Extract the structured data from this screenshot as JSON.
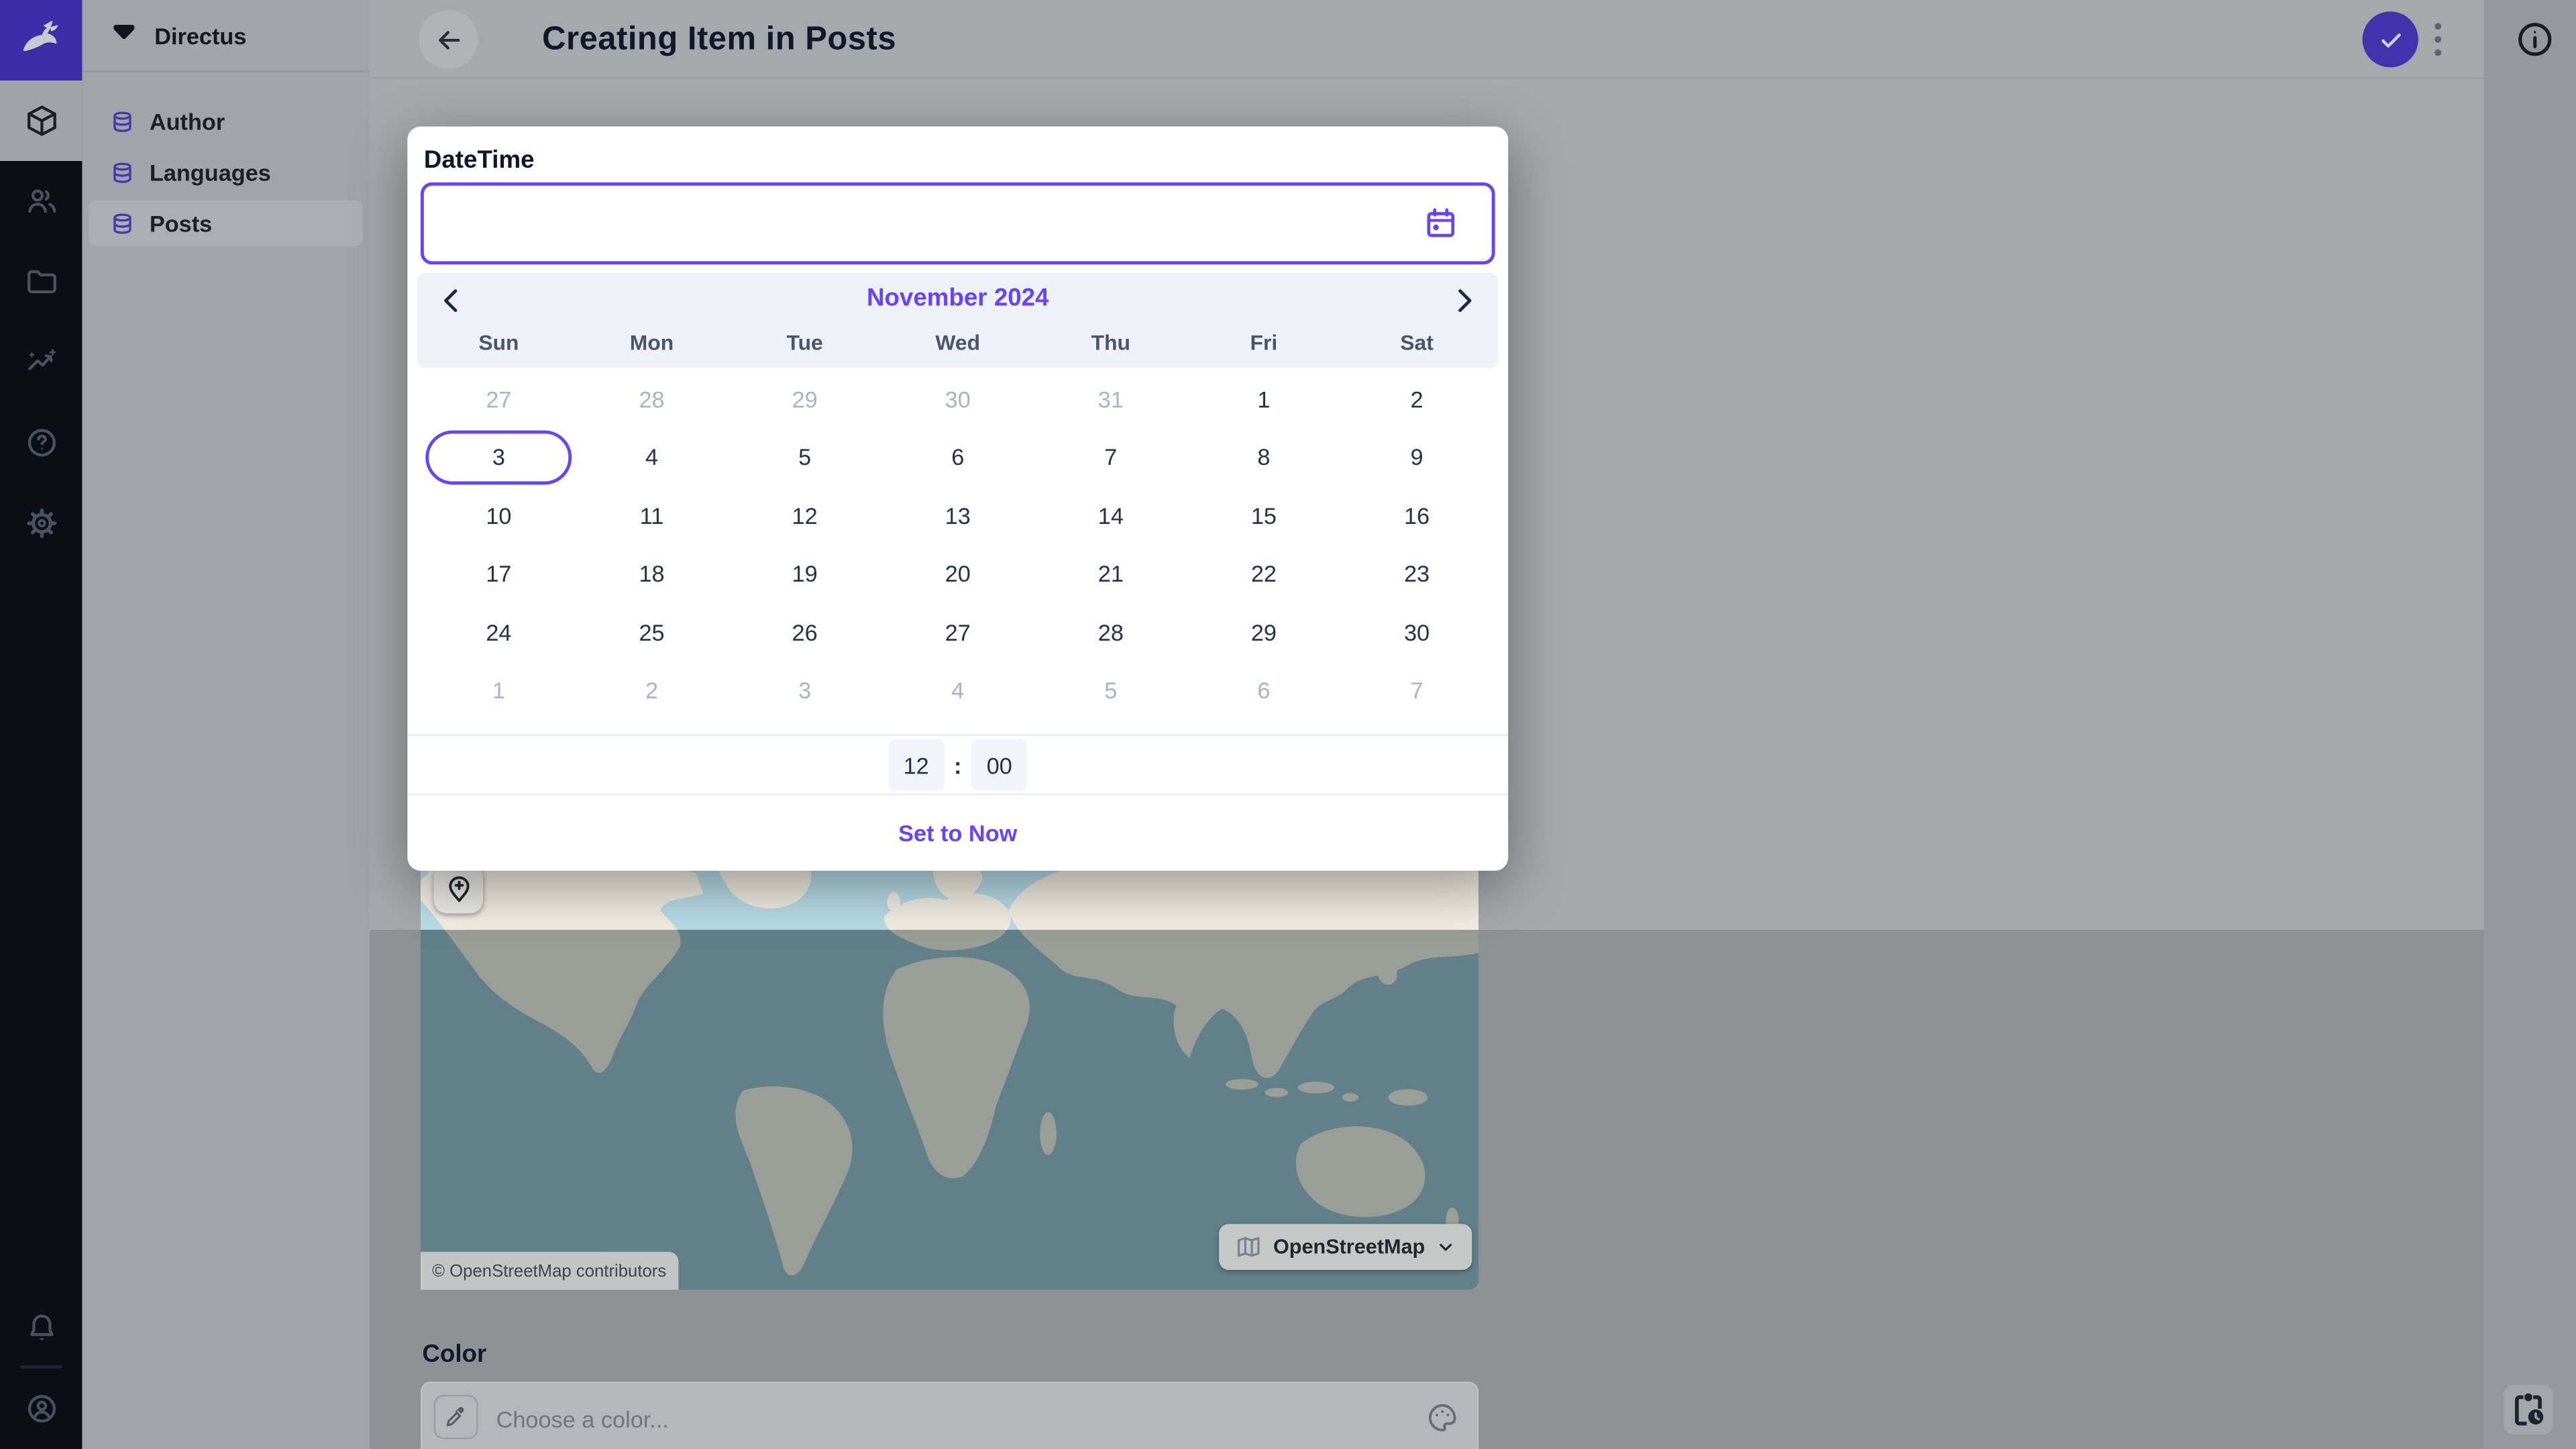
{
  "app": {
    "page_title": "Creating Item in Posts"
  },
  "project": {
    "name": "Directus"
  },
  "nav": {
    "items": [
      {
        "label": "Author",
        "active": false
      },
      {
        "label": "Languages",
        "active": false
      },
      {
        "label": "Posts",
        "active": true
      }
    ]
  },
  "datetime_popup": {
    "label": "DateTime",
    "input_value": "",
    "calendar": {
      "month_label": "November 2024",
      "weekdays": [
        "Sun",
        "Mon",
        "Tue",
        "Wed",
        "Thu",
        "Fri",
        "Sat"
      ],
      "weeks": [
        [
          {
            "n": "27",
            "muted": true
          },
          {
            "n": "28",
            "muted": true
          },
          {
            "n": "29",
            "muted": true
          },
          {
            "n": "30",
            "muted": true
          },
          {
            "n": "31",
            "muted": true
          },
          {
            "n": "1"
          },
          {
            "n": "2"
          }
        ],
        [
          {
            "n": "3",
            "selected": true
          },
          {
            "n": "4"
          },
          {
            "n": "5"
          },
          {
            "n": "6"
          },
          {
            "n": "7"
          },
          {
            "n": "8"
          },
          {
            "n": "9"
          }
        ],
        [
          {
            "n": "10"
          },
          {
            "n": "11"
          },
          {
            "n": "12"
          },
          {
            "n": "13"
          },
          {
            "n": "14"
          },
          {
            "n": "15"
          },
          {
            "n": "16"
          }
        ],
        [
          {
            "n": "17"
          },
          {
            "n": "18"
          },
          {
            "n": "19"
          },
          {
            "n": "20"
          },
          {
            "n": "21"
          },
          {
            "n": "22"
          },
          {
            "n": "23"
          }
        ],
        [
          {
            "n": "24"
          },
          {
            "n": "25"
          },
          {
            "n": "26"
          },
          {
            "n": "27"
          },
          {
            "n": "28"
          },
          {
            "n": "29"
          },
          {
            "n": "30"
          }
        ],
        [
          {
            "n": "1",
            "muted": true
          },
          {
            "n": "2",
            "muted": true
          },
          {
            "n": "3",
            "muted": true
          },
          {
            "n": "4",
            "muted": true
          },
          {
            "n": "5",
            "muted": true
          },
          {
            "n": "6",
            "muted": true
          },
          {
            "n": "7",
            "muted": true
          }
        ]
      ]
    },
    "time": {
      "hour": "12",
      "separator": ":",
      "minute": "00"
    },
    "set_to_now_label": "Set to Now"
  },
  "location_field": {
    "attribution": "© OpenStreetMap contributors",
    "layer_button_label": "OpenStreetMap"
  },
  "color_field": {
    "label": "Color",
    "placeholder": "Choose a color..."
  },
  "theme": {
    "accent": "#6644ff",
    "accent_dimmed": "#4431ac",
    "module_bar_bg": "#0b0e14",
    "ocean_dim": "#62808a",
    "ocean_bright": "#b9dde9",
    "land_dim": "#9b9e96",
    "land_bright": "#f3efe5"
  }
}
